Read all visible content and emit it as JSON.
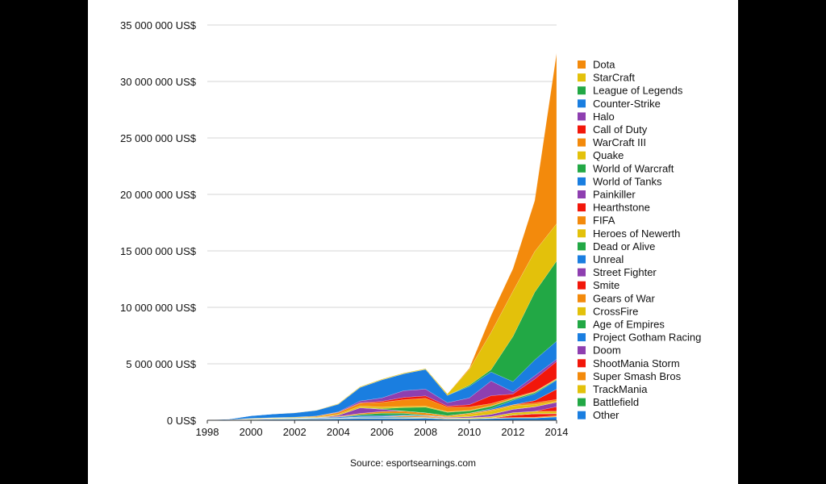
{
  "chart_data": {
    "type": "area",
    "stacked": true,
    "title": "",
    "xlabel": "",
    "ylabel": "",
    "ylim": [
      0,
      35000000
    ],
    "y_ticks": [
      0,
      5000000,
      10000000,
      15000000,
      20000000,
      25000000,
      30000000,
      35000000
    ],
    "y_tick_labels": [
      "0 US$",
      "5 000 000 US$",
      "10 000 000 US$",
      "15 000 000 US$",
      "20 000 000 US$",
      "25 000 000 US$",
      "30 000 000 US$",
      "35 000 000 US$"
    ],
    "x": [
      1998,
      1999,
      2000,
      2001,
      2002,
      2003,
      2004,
      2005,
      2006,
      2007,
      2008,
      2009,
      2010,
      2011,
      2012,
      2013,
      2014
    ],
    "x_ticks": [
      1998,
      2000,
      2002,
      2004,
      2006,
      2008,
      2010,
      2012,
      2014
    ],
    "x_tick_labels": [
      "1998",
      "2000",
      "2002",
      "2004",
      "2006",
      "2008",
      "2010",
      "2012",
      "2014"
    ],
    "legend_position": "right",
    "source": "Source: esportsearnings.com",
    "series": [
      {
        "name": "Other",
        "color": "#1a7ee0",
        "values": [
          10000,
          20000,
          50000,
          80000,
          80000,
          100000,
          120000,
          150000,
          150000,
          150000,
          180000,
          100000,
          100000,
          150000,
          200000,
          200000,
          300000
        ]
      },
      {
        "name": "Battlefield",
        "color": "#22a845",
        "values": [
          0,
          0,
          30000,
          30000,
          30000,
          30000,
          20000,
          20000,
          10000,
          10000,
          10000,
          0,
          0,
          0,
          0,
          0,
          0
        ]
      },
      {
        "name": "TrackMania",
        "color": "#e3c10b",
        "values": [
          0,
          0,
          0,
          0,
          0,
          0,
          20000,
          30000,
          30000,
          40000,
          30000,
          20000,
          20000,
          20000,
          20000,
          20000,
          30000
        ]
      },
      {
        "name": "Super Smash Bros",
        "color": "#f38a0c",
        "values": [
          0,
          0,
          0,
          0,
          0,
          0,
          0,
          0,
          0,
          10000,
          10000,
          10000,
          10000,
          20000,
          30000,
          50000,
          100000
        ]
      },
      {
        "name": "ShootMania Storm",
        "color": "#f2170a",
        "values": [
          0,
          0,
          0,
          0,
          0,
          0,
          0,
          0,
          0,
          0,
          0,
          0,
          0,
          0,
          200000,
          300000,
          150000
        ]
      },
      {
        "name": "Doom",
        "color": "#8e3fb0",
        "values": [
          0,
          10000,
          20000,
          20000,
          20000,
          10000,
          10000,
          10000,
          0,
          0,
          0,
          0,
          0,
          0,
          0,
          0,
          0
        ]
      },
      {
        "name": "Project Gotham Racing",
        "color": "#1a7ee0",
        "values": [
          0,
          0,
          0,
          0,
          0,
          0,
          0,
          50000,
          80000,
          50000,
          0,
          0,
          0,
          0,
          0,
          0,
          0
        ]
      },
      {
        "name": "Age of Empires",
        "color": "#22a845",
        "values": [
          0,
          0,
          0,
          20000,
          30000,
          30000,
          30000,
          30000,
          30000,
          30000,
          30000,
          20000,
          20000,
          20000,
          20000,
          20000,
          20000
        ]
      },
      {
        "name": "CrossFire",
        "color": "#e3c10b",
        "values": [
          0,
          0,
          0,
          0,
          0,
          0,
          0,
          0,
          0,
          0,
          0,
          0,
          50000,
          100000,
          200000,
          200000,
          200000
        ]
      },
      {
        "name": "Gears of War",
        "color": "#f38a0c",
        "values": [
          0,
          0,
          0,
          0,
          0,
          0,
          0,
          0,
          0,
          100000,
          100000,
          50000,
          20000,
          20000,
          0,
          0,
          0
        ]
      },
      {
        "name": "Smite",
        "color": "#f2170a",
        "values": [
          0,
          0,
          0,
          0,
          0,
          0,
          0,
          0,
          0,
          0,
          0,
          0,
          0,
          0,
          0,
          0,
          400000
        ]
      },
      {
        "name": "Street Fighter",
        "color": "#8e3fb0",
        "values": [
          0,
          0,
          0,
          0,
          0,
          0,
          10000,
          20000,
          30000,
          30000,
          30000,
          50000,
          100000,
          200000,
          300000,
          400000,
          400000
        ]
      },
      {
        "name": "Unreal",
        "color": "#1a7ee0",
        "values": [
          0,
          10000,
          20000,
          30000,
          40000,
          50000,
          80000,
          100000,
          100000,
          50000,
          20000,
          10000,
          10000,
          0,
          0,
          0,
          0
        ]
      },
      {
        "name": "Dead or Alive",
        "color": "#22a845",
        "values": [
          0,
          0,
          0,
          0,
          0,
          0,
          0,
          100000,
          200000,
          150000,
          50000,
          0,
          0,
          0,
          0,
          0,
          0
        ]
      },
      {
        "name": "Heroes of Newerth",
        "color": "#e3c10b",
        "values": [
          0,
          0,
          0,
          0,
          0,
          0,
          0,
          0,
          0,
          0,
          0,
          50000,
          200000,
          300000,
          300000,
          200000,
          100000
        ]
      },
      {
        "name": "FIFA",
        "color": "#f38a0c",
        "values": [
          0,
          0,
          0,
          0,
          10000,
          20000,
          50000,
          100000,
          150000,
          200000,
          200000,
          100000,
          100000,
          100000,
          100000,
          150000,
          150000
        ]
      },
      {
        "name": "Hearthstone",
        "color": "#f2170a",
        "values": [
          0,
          0,
          0,
          0,
          0,
          0,
          0,
          0,
          0,
          0,
          0,
          0,
          0,
          0,
          0,
          200000,
          900000
        ]
      },
      {
        "name": "Painkiller",
        "color": "#8e3fb0",
        "values": [
          0,
          0,
          0,
          0,
          0,
          0,
          100000,
          500000,
          200000,
          0,
          0,
          0,
          0,
          0,
          0,
          0,
          0
        ]
      },
      {
        "name": "World of Tanks",
        "color": "#1a7ee0",
        "values": [
          0,
          0,
          0,
          0,
          0,
          0,
          0,
          0,
          0,
          0,
          0,
          0,
          0,
          100000,
          400000,
          600000,
          800000
        ]
      },
      {
        "name": "World of Warcraft",
        "color": "#22a845",
        "values": [
          0,
          0,
          0,
          0,
          0,
          0,
          0,
          0,
          50000,
          300000,
          500000,
          300000,
          200000,
          200000,
          100000,
          100000,
          50000
        ]
      },
      {
        "name": "Quake",
        "color": "#e3c10b",
        "values": [
          0,
          20000,
          50000,
          50000,
          50000,
          50000,
          100000,
          150000,
          150000,
          100000,
          100000,
          50000,
          50000,
          50000,
          50000,
          50000,
          50000
        ]
      },
      {
        "name": "WarCraft III",
        "color": "#f38a0c",
        "values": [
          0,
          0,
          0,
          0,
          20000,
          80000,
          150000,
          250000,
          400000,
          600000,
          700000,
          400000,
          300000,
          200000,
          100000,
          50000,
          50000
        ]
      },
      {
        "name": "Call of Duty",
        "color": "#f2170a",
        "values": [
          0,
          0,
          0,
          0,
          0,
          0,
          0,
          50000,
          100000,
          200000,
          200000,
          100000,
          200000,
          700000,
          300000,
          1100000,
          1500000
        ]
      },
      {
        "name": "Halo",
        "color": "#8e3fb0",
        "values": [
          0,
          0,
          0,
          0,
          0,
          0,
          50000,
          150000,
          300000,
          600000,
          600000,
          300000,
          600000,
          1300000,
          200000,
          300000,
          200000
        ]
      },
      {
        "name": "Counter-Strike",
        "color": "#1a7ee0",
        "values": [
          20000,
          50000,
          230000,
          330000,
          380000,
          510000,
          680000,
          1200000,
          1600000,
          1500000,
          1750000,
          650000,
          1020000,
          800000,
          900000,
          1400000,
          1600000
        ]
      },
      {
        "name": "League of Legends",
        "color": "#22a845",
        "values": [
          0,
          0,
          0,
          0,
          0,
          0,
          0,
          0,
          0,
          0,
          0,
          0,
          100000,
          200000,
          4000000,
          6000000,
          7100000
        ]
      },
      {
        "name": "StarCraft",
        "color": "#e3c10b",
        "values": [
          0,
          0,
          0,
          0,
          20000,
          20000,
          60000,
          70000,
          70000,
          70000,
          70000,
          130000,
          1400000,
          3300000,
          4000000,
          3600000,
          3300000
        ]
      },
      {
        "name": "Dota",
        "color": "#f38a0c",
        "values": [
          0,
          0,
          0,
          0,
          0,
          0,
          0,
          0,
          0,
          0,
          0,
          0,
          100000,
          1500000,
          2000000,
          4500000,
          15100000
        ]
      }
    ]
  }
}
